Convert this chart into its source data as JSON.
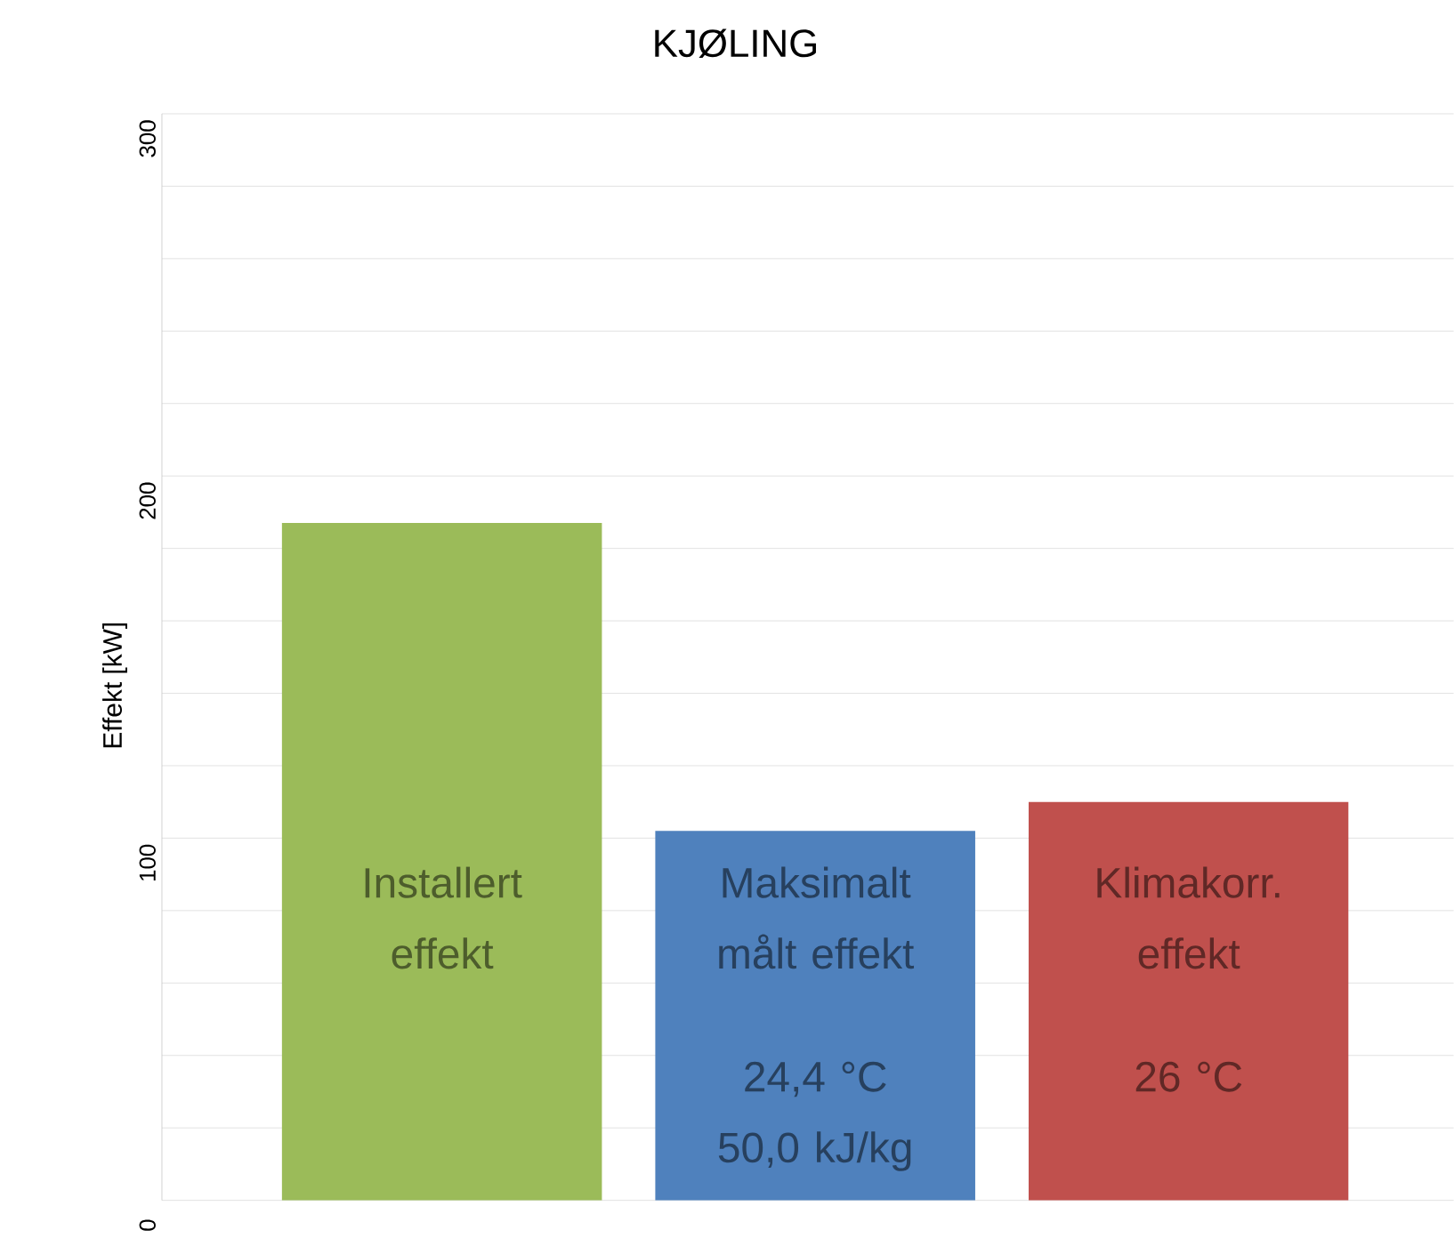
{
  "chart_data": {
    "type": "bar",
    "title": "KJØLING",
    "ylabel": "Effekt [kW]",
    "categories": [
      "Installert effekt",
      "Maksimalt målt effekt",
      "Klimakorr. effekt"
    ],
    "values": [
      187,
      102,
      110
    ],
    "colors": [
      "#9bbb59",
      "#4f81bd",
      "#c0504d"
    ],
    "ylim": [
      0,
      300
    ],
    "yticks": [
      0,
      {
        "value": 20,
        "label": null
      },
      {
        "value": 40,
        "label": null
      },
      {
        "value": 60,
        "label": null
      },
      {
        "value": 80,
        "label": null
      },
      100,
      {
        "value": 120,
        "label": null
      },
      {
        "value": 140,
        "label": null
      },
      {
        "value": 160,
        "label": null
      },
      {
        "value": 180,
        "label": null
      },
      200,
      {
        "value": 220,
        "label": null
      },
      {
        "value": 240,
        "label": null
      },
      {
        "value": 260,
        "label": null
      },
      {
        "value": 280,
        "label": null
      },
      300
    ],
    "grid": "y",
    "annotations": [
      "24,4 °C 50,0 kJ/kg",
      "26 °C"
    ]
  }
}
